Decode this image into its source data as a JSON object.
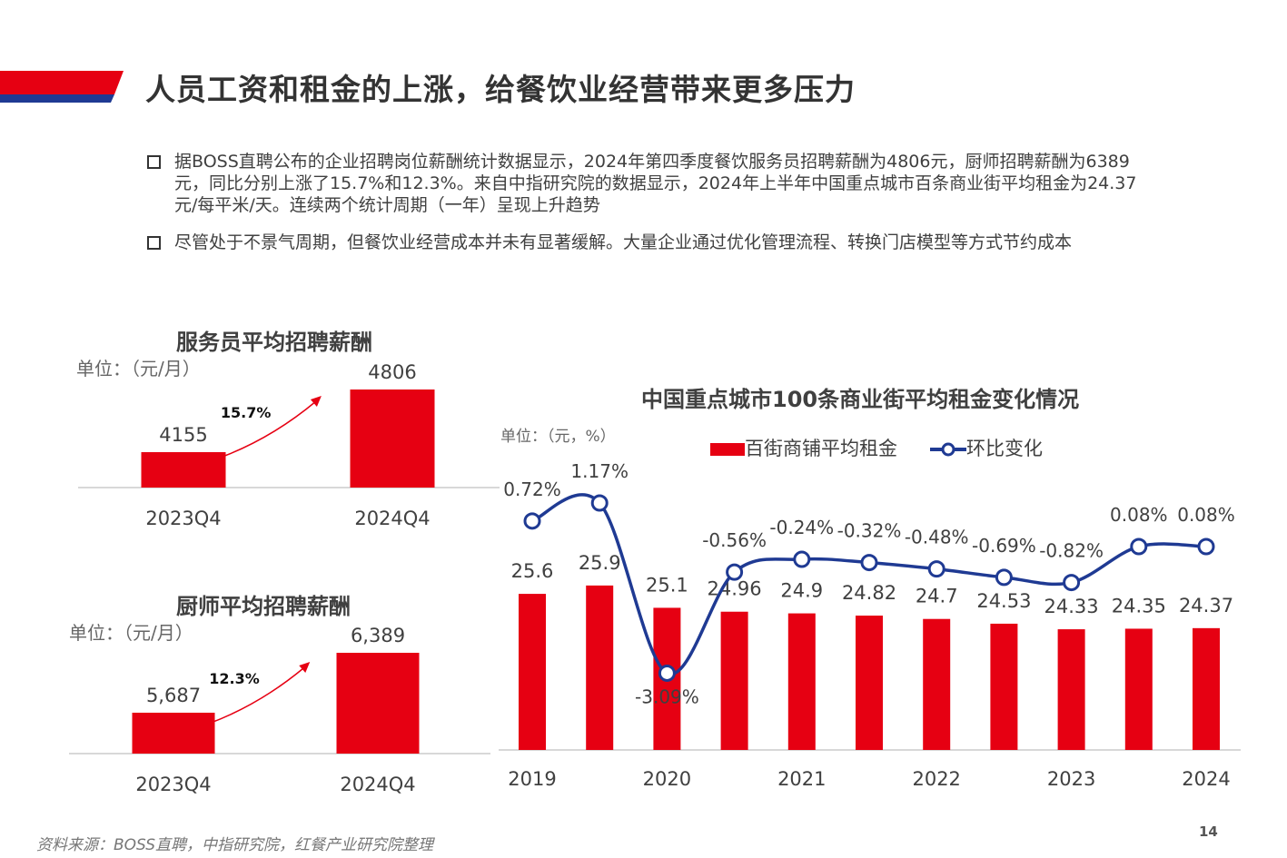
{
  "header": {
    "title": "人员工资和租金的上涨，给餐饮业经营带来更多压力",
    "accent_red": "#E60012",
    "accent_blue": "#1F3A93"
  },
  "bullets": [
    "据BOSS直聘公布的企业招聘岗位薪酬统计数据显示，2024年第四季度餐饮服务员招聘薪酬为4806元，厨师招聘薪酬为6389元，同比分别上涨了15.7%和12.3%。来自中指研究院的数据显示，2024年上半年中国重点城市百条商业街平均租金为24.37元/每平米/天。连续两个统计周期（一年）呈现上升趋势",
    "尽管处于不景气周期，但餐饮业经营成本并未有显著缓解。大量企业通过优化管理流程、转换门店模型等方式节约成本"
  ],
  "chart_data": [
    {
      "type": "bar",
      "title": "服务员平均招聘薪酬",
      "unit": "单位：（元/月）",
      "categories": [
        "2023Q4",
        "2024Q4"
      ],
      "values": [
        4155,
        4806
      ],
      "value_labels": [
        "4155",
        "4806"
      ],
      "growth": "15.7%",
      "color": "#E60012"
    },
    {
      "type": "bar",
      "title": "厨师平均招聘薪酬",
      "unit": "单位：（元/月）",
      "categories": [
        "2023Q4",
        "2024Q4"
      ],
      "values": [
        5687,
        6389
      ],
      "value_labels": [
        "5,687",
        "6,389"
      ],
      "growth": "12.3%",
      "color": "#E60012"
    },
    {
      "type": "bar+line",
      "title": "中国重点城市100条商业街平均租金变化情况",
      "unit": "单位：（元，%）",
      "x_tick_labels": [
        "2019",
        "2020",
        "2021",
        "2022",
        "2023",
        "2024"
      ],
      "series": [
        {
          "name": "百街商铺平均租金",
          "type": "bar",
          "color": "#E60012",
          "values": [
            25.6,
            25.9,
            25.1,
            24.96,
            24.9,
            24.82,
            24.7,
            24.53,
            24.33,
            24.35,
            24.37
          ]
        },
        {
          "name": "环比变化",
          "type": "line",
          "color": "#1F3A93",
          "values": [
            0.72,
            1.17,
            -3.09,
            -0.56,
            -0.24,
            -0.32,
            -0.48,
            -0.69,
            -0.82,
            0.08,
            0.08
          ],
          "labels": [
            "0.72%",
            "1.17%",
            "-3.09%",
            "-0.56%",
            "-0.24%",
            "-0.32%",
            "-0.48%",
            "-0.69%",
            "-0.82%",
            "0.08%",
            "0.08%"
          ]
        }
      ],
      "legend_position": "top"
    }
  ],
  "footer": {
    "source": "资料来源：BOSS直聘，中指研究院，红餐产业研究院整理",
    "page": "14"
  }
}
